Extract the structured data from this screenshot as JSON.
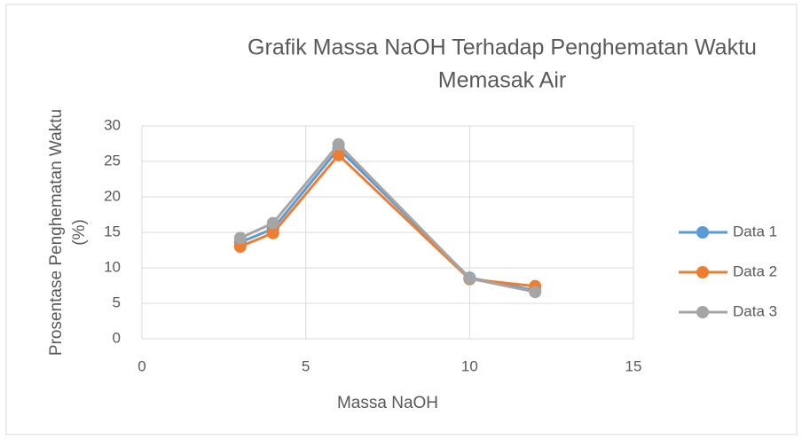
{
  "chart_data": {
    "type": "line",
    "title": [
      "Grafik Massa NaOH Terhadap Penghematan Waktu",
      "Memasak Air"
    ],
    "x_label": "Massa NaOH",
    "y_label": [
      "Prosentase Penghematan Waktu",
      "(%)"
    ],
    "x": [
      3,
      4,
      6,
      10,
      12
    ],
    "series": [
      {
        "name": "Data 1",
        "color": "#5b9bd5",
        "values": [
          13.6,
          15.5,
          26.8,
          8.6,
          6.8
        ]
      },
      {
        "name": "Data 2",
        "color": "#ed7d31",
        "values": [
          13.0,
          14.9,
          25.9,
          8.4,
          7.4
        ]
      },
      {
        "name": "Data 3",
        "color": "#a5a5a5",
        "values": [
          14.2,
          16.3,
          27.4,
          8.5,
          6.6
        ]
      }
    ],
    "xlim": [
      0,
      15
    ],
    "xticks": [
      0,
      5,
      10,
      15
    ],
    "ylim": [
      0,
      30
    ],
    "yticks": [
      0,
      5,
      10,
      15,
      20,
      25,
      30
    ],
    "grid": true,
    "legend": "right"
  }
}
